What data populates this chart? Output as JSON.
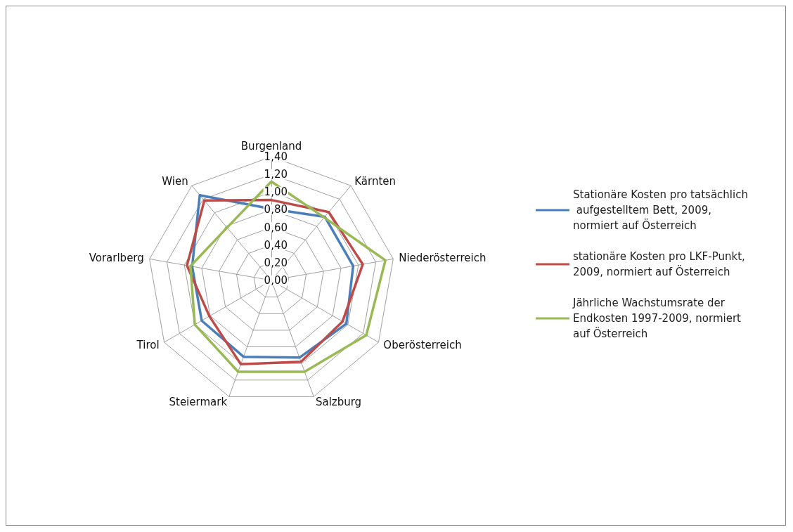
{
  "chart_data": {
    "type": "radar",
    "categories": [
      "Burgenland",
      "Kärnten",
      "Niederösterreich",
      "Oberösterreich",
      "Salzburg",
      "Steiermark",
      "Tirol",
      "Vorarlberg",
      "Wien"
    ],
    "ylim": [
      0,
      1.4
    ],
    "yticks": [
      {
        "value": 0,
        "label": "0,00"
      },
      {
        "value": 0.2,
        "label": "0,20"
      },
      {
        "value": 0.4,
        "label": "0,40"
      },
      {
        "value": 0.6,
        "label": "0,60"
      },
      {
        "value": 0.8,
        "label": "0,80"
      },
      {
        "value": 1,
        "label": "1,00"
      },
      {
        "value": 1.2,
        "label": "1,20"
      },
      {
        "value": 1.4,
        "label": "1,40"
      }
    ],
    "grid": true,
    "legend": "right",
    "marker": "none",
    "line_style": "solid",
    "series": [
      {
        "name": "Stationäre Kosten pro tatsächlich aufgestelltem Bett, 2009, normiert auf Österreich",
        "color": "#4a7ebb",
        "values": [
          0.81,
          0.94,
          0.94,
          0.98,
          0.93,
          0.92,
          0.91,
          0.91,
          1.26
        ]
      },
      {
        "name": "stationäre Kosten pro LKF-Punkt, 2009, normiert auf Österreich",
        "color": "#be4b48",
        "values": [
          0.91,
          1.01,
          1.05,
          0.93,
          0.98,
          1.01,
          0.81,
          0.97,
          1.18
        ]
      },
      {
        "name": "Jährliche Wachstumsrate der Endkosten 1997-2009, normiert auf Österreich",
        "color": "#98b954",
        "values": [
          1.12,
          0.93,
          1.31,
          1.24,
          1.1,
          1.1,
          1.0,
          0.93,
          0.78
        ]
      }
    ]
  }
}
